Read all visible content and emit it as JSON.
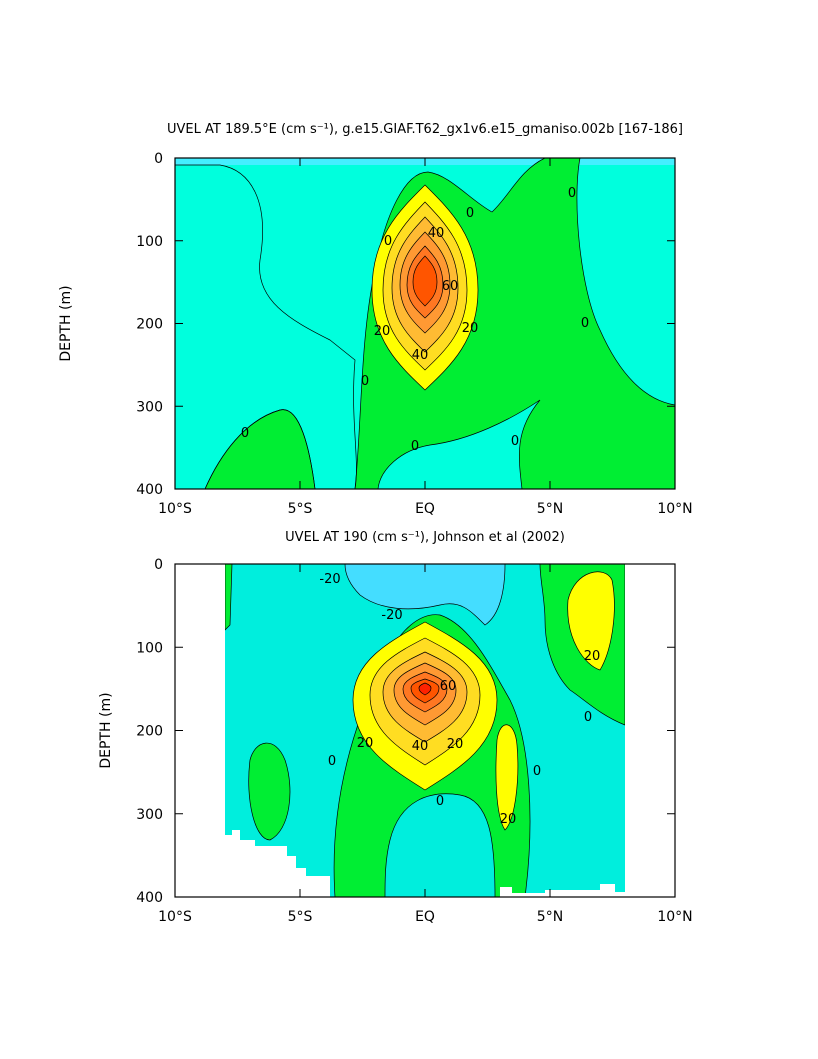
{
  "chart_data": [
    {
      "type": "contour",
      "title": "UVEL AT 189.5°E (cm s⁻¹), g.e15.GIAF.T62_gx1v6.e15_gmaniso.002b [167-186]",
      "ylabel": "DEPTH (m)",
      "xlim": [
        -10,
        10
      ],
      "ylim": [
        0,
        400
      ],
      "y_inverted": true,
      "xticks": [
        {
          "value": -10,
          "label": "10°S"
        },
        {
          "value": -5,
          "label": "5°S"
        },
        {
          "value": 0,
          "label": "EQ"
        },
        {
          "value": 5,
          "label": "5°N"
        },
        {
          "value": 10,
          "label": "10°N"
        }
      ],
      "yticks": [
        0,
        100,
        200,
        300,
        400
      ],
      "contour_labels": [
        0,
        0,
        0,
        0,
        0,
        0,
        0,
        0,
        20,
        20,
        40,
        40,
        60
      ]
    },
    {
      "type": "contour",
      "title": "UVEL AT 190 (cm s⁻¹), Johnson et al (2002)",
      "ylabel": "DEPTH (m)",
      "xlim": [
        -10,
        10
      ],
      "ylim": [
        0,
        400
      ],
      "y_inverted": true,
      "xticks": [
        {
          "value": -10,
          "label": "10°S"
        },
        {
          "value": -5,
          "label": "5°S"
        },
        {
          "value": 0,
          "label": "EQ"
        },
        {
          "value": 5,
          "label": "5°N"
        },
        {
          "value": 10,
          "label": "10°N"
        }
      ],
      "yticks": [
        0,
        100,
        200,
        300,
        400
      ],
      "contour_labels": [
        -20,
        -20,
        0,
        0,
        0,
        0,
        20,
        20,
        20,
        20,
        40,
        60
      ]
    }
  ]
}
